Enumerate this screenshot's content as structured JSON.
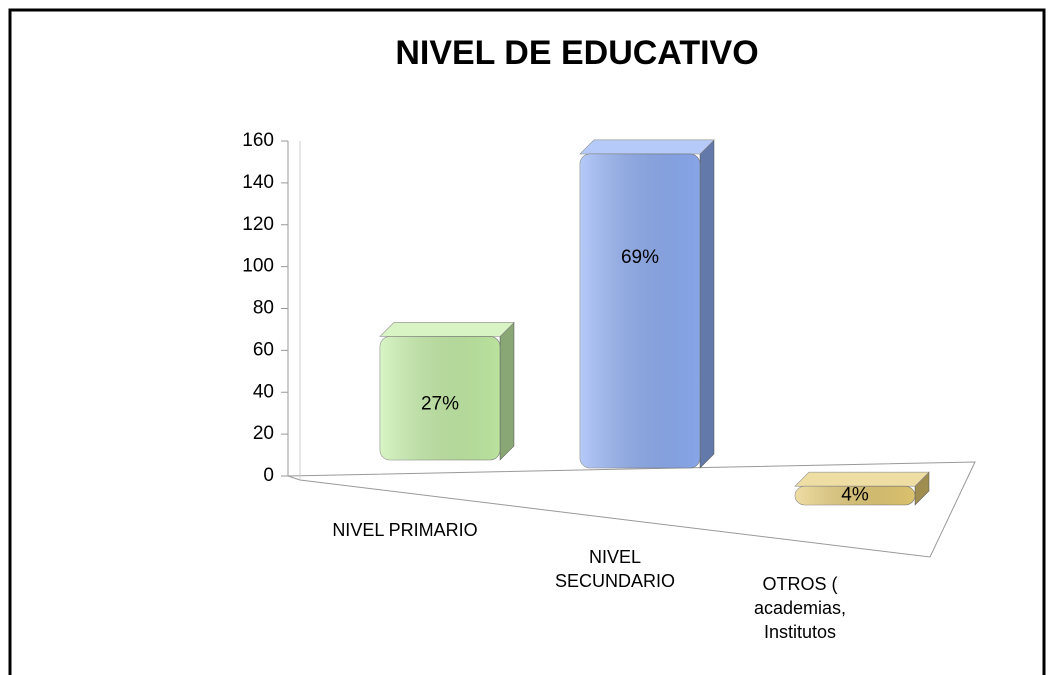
{
  "chart_data": {
    "type": "bar3d",
    "title": "NIVEL DE EDUCATIVO",
    "categories": [
      "NIVEL PRIMARIO",
      "NIVEL SECUNDARIO",
      "OTROS ( academias, Institutos"
    ],
    "values": [
      59,
      150,
      9
    ],
    "shares": [
      27,
      69,
      4
    ],
    "share_labels": [
      "27%",
      "69%",
      "4%"
    ],
    "colors": [
      "#c4efa6",
      "#8eaef4",
      "#e6cc74"
    ],
    "ylim": [
      0,
      160
    ],
    "yticks": [
      0,
      20,
      40,
      60,
      80,
      100,
      120,
      140,
      160
    ],
    "grid": false
  }
}
